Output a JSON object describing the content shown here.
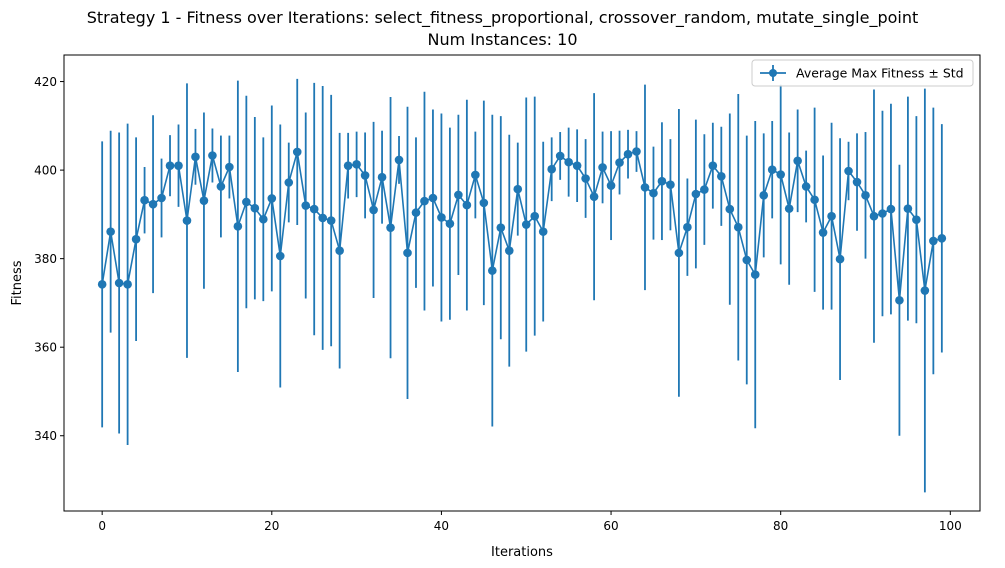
{
  "chart_data": {
    "type": "line",
    "title": "Strategy 1 - Fitness over Iterations: select_fitness_proportional, crossover_random, mutate_single_point",
    "subtitle": "Num Instances: 10",
    "xlabel": "Iterations",
    "ylabel": "Fitness",
    "xlim": [
      -4.5,
      103.5
    ],
    "ylim": [
      323,
      426
    ],
    "xticks": [
      0,
      20,
      40,
      60,
      80,
      100
    ],
    "yticks": [
      340,
      360,
      380,
      400,
      420
    ],
    "grid": false,
    "legend_position": "top-right",
    "color": "#1f77b4",
    "series": [
      {
        "name": "Average Max Fitness ± Std",
        "x": [
          0,
          1,
          2,
          3,
          4,
          5,
          6,
          7,
          8,
          9,
          10,
          11,
          12,
          13,
          14,
          15,
          16,
          17,
          18,
          19,
          20,
          21,
          22,
          23,
          24,
          25,
          26,
          27,
          28,
          29,
          30,
          31,
          32,
          33,
          34,
          35,
          36,
          37,
          38,
          39,
          40,
          41,
          42,
          43,
          44,
          45,
          46,
          47,
          48,
          49,
          50,
          51,
          52,
          53,
          54,
          55,
          56,
          57,
          58,
          59,
          60,
          61,
          62,
          63,
          64,
          65,
          66,
          67,
          68,
          69,
          70,
          71,
          72,
          73,
          74,
          75,
          76,
          77,
          78,
          79,
          80,
          81,
          82,
          83,
          84,
          85,
          86,
          87,
          88,
          89,
          90,
          91,
          92,
          93,
          94,
          95,
          96,
          97,
          98,
          99
        ],
        "values": [
          374.2,
          386.1,
          374.5,
          374.2,
          384.4,
          393.2,
          392.3,
          393.7,
          401.0,
          401.0,
          388.6,
          403.0,
          393.1,
          403.3,
          396.3,
          400.7,
          387.3,
          392.8,
          391.4,
          388.9,
          393.6,
          380.6,
          397.2,
          404.1,
          392.0,
          391.2,
          389.2,
          388.6,
          381.8,
          401.0,
          401.3,
          398.8,
          391.0,
          398.4,
          387.0,
          402.3,
          381.3,
          390.4,
          393.0,
          393.7,
          389.3,
          387.9,
          394.4,
          392.1,
          398.9,
          392.6,
          377.3,
          387.0,
          381.8,
          395.7,
          387.7,
          389.6,
          386.1,
          400.2,
          403.2,
          401.8,
          401.0,
          398.1,
          394.0,
          400.6,
          396.5,
          401.7,
          403.6,
          404.2,
          396.1,
          394.8,
          397.5,
          396.7,
          381.3,
          387.1,
          394.6,
          395.6,
          401.0,
          398.6,
          391.2,
          387.1,
          379.7,
          376.4,
          394.3,
          400.1,
          399.0,
          391.3,
          402.1,
          396.3,
          393.3,
          385.9,
          389.6,
          379.9,
          399.8,
          397.3,
          394.3,
          389.6,
          390.2,
          391.2,
          370.6,
          391.3,
          388.8,
          372.8,
          384.0,
          384.6
        ],
        "std": [
          32.3,
          22.8,
          34.0,
          36.3,
          23.0,
          7.5,
          20.1,
          8.9,
          6.9,
          9.3,
          31.0,
          6.3,
          19.9,
          6.1,
          11.5,
          7.1,
          32.9,
          24.0,
          20.6,
          18.5,
          21.0,
          29.7,
          9.0,
          16.5,
          21.0,
          28.5,
          29.8,
          28.4,
          26.6,
          7.4,
          7.4,
          9.7,
          19.9,
          10.5,
          29.5,
          5.4,
          33.0,
          17.0,
          24.7,
          20.0,
          23.5,
          21.7,
          18.1,
          23.8,
          9.8,
          23.1,
          35.2,
          25.2,
          26.2,
          10.5,
          28.7,
          27.0,
          20.3,
          7.2,
          5.4,
          7.8,
          8.2,
          8.9,
          23.4,
          8.1,
          12.3,
          7.2,
          5.5,
          4.6,
          23.2,
          10.5,
          13.3,
          10.3,
          32.5,
          11.0,
          16.8,
          12.5,
          9.7,
          11.2,
          21.6,
          30.1,
          28.1,
          34.7,
          14.0,
          11.0,
          20.3,
          17.2,
          11.6,
          8.1,
          20.8,
          17.4,
          21.1,
          27.3,
          6.6,
          11.0,
          14.3,
          28.6,
          23.2,
          23.8,
          30.6,
          25.3,
          23.4,
          45.6,
          30.1,
          25.8
        ]
      }
    ]
  }
}
